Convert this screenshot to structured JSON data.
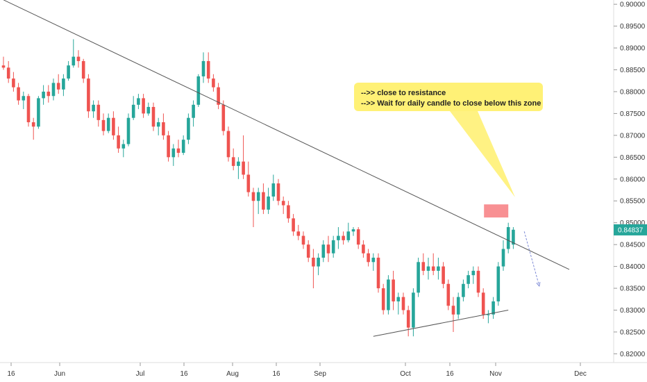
{
  "chart_data": {
    "type": "candlestick",
    "y_axis": {
      "ticks": [
        "0.82000",
        "0.82500",
        "0.83000",
        "0.83500",
        "0.84000",
        "0.84500",
        "0.85000",
        "0.85500",
        "0.86000",
        "0.86500",
        "0.87000",
        "0.87500",
        "0.88000",
        "0.88500",
        "0.89000",
        "0.89500",
        "0.90000"
      ],
      "range": [
        0.818,
        0.9005
      ]
    },
    "x_axis": {
      "ticks": [
        "16",
        "Jun",
        "Jul",
        "16",
        "Aug",
        "16",
        "Sep",
        "Oct",
        "16",
        "Nov",
        "Dec"
      ]
    },
    "last_price": {
      "label": "0.84837",
      "value": 0.84837
    },
    "colors": {
      "up": "#26a69a",
      "down": "#ef5350",
      "annotation_bg": "#fff176",
      "zone": "#f77c80",
      "projection": "#7e8bd6",
      "trendline": "#555555"
    },
    "annotation": {
      "lines": [
        "-->> close to resistance",
        "-->> Wait for daily candle to close below this zone"
      ]
    },
    "candles_ohlc": [
      [
        0.886,
        0.888,
        0.885,
        0.8855
      ],
      [
        0.8855,
        0.887,
        0.882,
        0.883
      ],
      [
        0.883,
        0.8845,
        0.88,
        0.881
      ],
      [
        0.881,
        0.882,
        0.877,
        0.878
      ],
      [
        0.878,
        0.88,
        0.876,
        0.879
      ],
      [
        0.879,
        0.8795,
        0.872,
        0.873
      ],
      [
        0.873,
        0.874,
        0.869,
        0.872
      ],
      [
        0.872,
        0.879,
        0.8715,
        0.8785
      ],
      [
        0.8785,
        0.8815,
        0.877,
        0.88
      ],
      [
        0.88,
        0.8815,
        0.8775,
        0.879
      ],
      [
        0.879,
        0.883,
        0.878,
        0.882
      ],
      [
        0.882,
        0.884,
        0.8795,
        0.8805
      ],
      [
        0.8805,
        0.884,
        0.879,
        0.883
      ],
      [
        0.883,
        0.887,
        0.8825,
        0.886
      ],
      [
        0.886,
        0.892,
        0.8855,
        0.888
      ],
      [
        0.888,
        0.8895,
        0.8855,
        0.887
      ],
      [
        0.887,
        0.8875,
        0.882,
        0.883
      ],
      [
        0.883,
        0.884,
        0.874,
        0.8755
      ],
      [
        0.8755,
        0.878,
        0.874,
        0.877
      ],
      [
        0.877,
        0.878,
        0.872,
        0.8735
      ],
      [
        0.8735,
        0.875,
        0.87,
        0.871
      ],
      [
        0.871,
        0.875,
        0.8705,
        0.874
      ],
      [
        0.874,
        0.8755,
        0.869,
        0.87
      ],
      [
        0.87,
        0.872,
        0.866,
        0.867
      ],
      [
        0.867,
        0.869,
        0.865,
        0.868
      ],
      [
        0.868,
        0.875,
        0.8675,
        0.874
      ],
      [
        0.874,
        0.879,
        0.8735,
        0.877
      ],
      [
        0.877,
        0.8795,
        0.876,
        0.8785
      ],
      [
        0.8785,
        0.8795,
        0.874,
        0.875
      ],
      [
        0.875,
        0.8775,
        0.8745,
        0.8765
      ],
      [
        0.8765,
        0.8775,
        0.871,
        0.872
      ],
      [
        0.872,
        0.874,
        0.87,
        0.873
      ],
      [
        0.873,
        0.875,
        0.869,
        0.87
      ],
      [
        0.87,
        0.871,
        0.864,
        0.865
      ],
      [
        0.865,
        0.868,
        0.863,
        0.867
      ],
      [
        0.867,
        0.869,
        0.865,
        0.866
      ],
      [
        0.866,
        0.87,
        0.8655,
        0.869
      ],
      [
        0.869,
        0.875,
        0.868,
        0.874
      ],
      [
        0.874,
        0.878,
        0.872,
        0.877
      ],
      [
        0.877,
        0.884,
        0.8765,
        0.8835
      ],
      [
        0.8835,
        0.889,
        0.882,
        0.887
      ],
      [
        0.887,
        0.889,
        0.882,
        0.883
      ],
      [
        0.883,
        0.884,
        0.88,
        0.881
      ],
      [
        0.881,
        0.882,
        0.876,
        0.877
      ],
      [
        0.877,
        0.878,
        0.87,
        0.871
      ],
      [
        0.871,
        0.872,
        0.864,
        0.865
      ],
      [
        0.865,
        0.867,
        0.862,
        0.863
      ],
      [
        0.863,
        0.865,
        0.86,
        0.864
      ],
      [
        0.864,
        0.87,
        0.86,
        0.861
      ],
      [
        0.861,
        0.864,
        0.856,
        0.857
      ],
      [
        0.857,
        0.858,
        0.849,
        0.855
      ],
      [
        0.855,
        0.858,
        0.852,
        0.857
      ],
      [
        0.857,
        0.859,
        0.852,
        0.853
      ],
      [
        0.853,
        0.858,
        0.852,
        0.856
      ],
      [
        0.856,
        0.861,
        0.855,
        0.859
      ],
      [
        0.859,
        0.86,
        0.854,
        0.855
      ],
      [
        0.855,
        0.856,
        0.852,
        0.854
      ],
      [
        0.854,
        0.855,
        0.85,
        0.851
      ],
      [
        0.851,
        0.852,
        0.847,
        0.848
      ],
      [
        0.848,
        0.8495,
        0.846,
        0.847
      ],
      [
        0.847,
        0.848,
        0.844,
        0.845
      ],
      [
        0.845,
        0.846,
        0.841,
        0.842
      ],
      [
        0.842,
        0.844,
        0.835,
        0.84
      ],
      [
        0.84,
        0.843,
        0.838,
        0.842
      ],
      [
        0.842,
        0.846,
        0.841,
        0.845
      ],
      [
        0.845,
        0.847,
        0.841,
        0.843
      ],
      [
        0.843,
        0.847,
        0.842,
        0.846
      ],
      [
        0.846,
        0.849,
        0.844,
        0.847
      ],
      [
        0.847,
        0.848,
        0.845,
        0.846
      ],
      [
        0.846,
        0.85,
        0.8455,
        0.848
      ],
      [
        0.848,
        0.849,
        0.847,
        0.8485
      ],
      [
        0.8485,
        0.849,
        0.844,
        0.845
      ],
      [
        0.845,
        0.846,
        0.842,
        0.843
      ],
      [
        0.843,
        0.844,
        0.84,
        0.841
      ],
      [
        0.841,
        0.843,
        0.839,
        0.842
      ],
      [
        0.842,
        0.843,
        0.834,
        0.835
      ],
      [
        0.835,
        0.836,
        0.829,
        0.83
      ],
      [
        0.83,
        0.838,
        0.829,
        0.837
      ],
      [
        0.837,
        0.839,
        0.83,
        0.832
      ],
      [
        0.832,
        0.834,
        0.829,
        0.833
      ],
      [
        0.833,
        0.834,
        0.829,
        0.83
      ],
      [
        0.83,
        0.831,
        0.824,
        0.826
      ],
      [
        0.826,
        0.835,
        0.824,
        0.834
      ],
      [
        0.834,
        0.842,
        0.833,
        0.841
      ],
      [
        0.841,
        0.843,
        0.838,
        0.839
      ],
      [
        0.839,
        0.842,
        0.837,
        0.84
      ],
      [
        0.84,
        0.843,
        0.838,
        0.839
      ],
      [
        0.839,
        0.842,
        0.837,
        0.84
      ],
      [
        0.84,
        0.841,
        0.835,
        0.836
      ],
      [
        0.836,
        0.837,
        0.83,
        0.831
      ],
      [
        0.831,
        0.833,
        0.825,
        0.829
      ],
      [
        0.829,
        0.834,
        0.828,
        0.833
      ],
      [
        0.833,
        0.837,
        0.832,
        0.836
      ],
      [
        0.836,
        0.839,
        0.835,
        0.838
      ],
      [
        0.838,
        0.84,
        0.836,
        0.839
      ],
      [
        0.839,
        0.84,
        0.833,
        0.834
      ],
      [
        0.834,
        0.835,
        0.828,
        0.829
      ],
      [
        0.829,
        0.83,
        0.827,
        0.829
      ],
      [
        0.829,
        0.833,
        0.828,
        0.832
      ],
      [
        0.832,
        0.841,
        0.831,
        0.84
      ],
      [
        0.84,
        0.846,
        0.839,
        0.844
      ],
      [
        0.844,
        0.85,
        0.843,
        0.849
      ],
      [
        0.845,
        0.849,
        0.844,
        0.8484
      ]
    ],
    "trendlines": [
      {
        "name": "resistance",
        "p1": [
          0,
          0.901
        ],
        "p2": [
          100,
          0.8465
        ]
      },
      {
        "name": "support",
        "p1": [
          74,
          0.824
        ],
        "p2": [
          101,
          0.83
        ]
      }
    ],
    "resistance_zone": {
      "start": 96,
      "end": 101,
      "top": 0.8542,
      "bottom": 0.8512
    },
    "projection": {
      "from": [
        101,
        0.848
      ],
      "to": [
        104,
        0.8355
      ]
    }
  }
}
